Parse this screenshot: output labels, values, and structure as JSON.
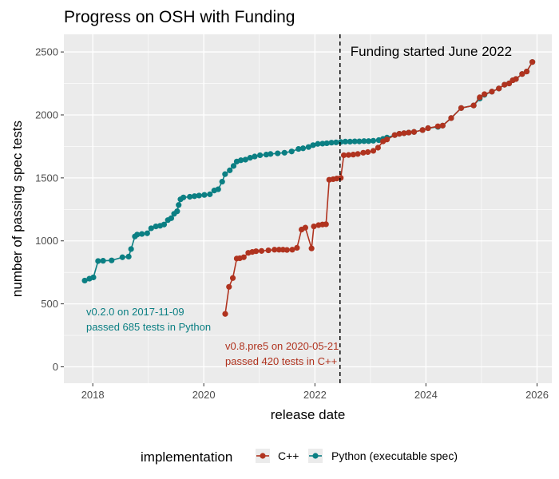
{
  "chart_data": {
    "type": "line",
    "title": "Progress on OSH with Funding",
    "xlabel": "release date",
    "ylabel": "number of passing spec tests",
    "x_type": "date",
    "xlim": [
      "2017-06-25",
      "2026-04-08"
    ],
    "ylim": [
      -130,
      2640
    ],
    "x_ticks": [
      "2018-01-01",
      "2020-01-01",
      "2022-01-01",
      "2024-01-01",
      "2026-01-01"
    ],
    "x_tick_labels": [
      "2018",
      "2020",
      "2022",
      "2024",
      "2026"
    ],
    "y_ticks": [
      0,
      500,
      1000,
      1500,
      2000,
      2500
    ],
    "y_tick_labels": [
      "0",
      "500",
      "1000",
      "1500",
      "2000",
      "2500"
    ],
    "grid": true,
    "legend": {
      "position": "bottom",
      "title": "implementation",
      "entries": [
        "C++",
        "Python (executable spec)"
      ]
    },
    "colors": {
      "cpp": "#b0331f",
      "python": "#0b7f83",
      "panel": "#ebebeb",
      "grid": "#ffffff",
      "vline": "#000000"
    },
    "reference_line": {
      "x": "2022-06-15",
      "label": "Funding started June 2022"
    },
    "annotations": [
      {
        "series": "python",
        "lines": [
          "v0.2.0 on 2017-11-09",
          "passed 685 tests in Python"
        ]
      },
      {
        "series": "cpp",
        "lines": [
          "v0.8.pre5 on 2020-05-21",
          "passed 420 tests in C++"
        ]
      }
    ],
    "series": [
      {
        "key": "cpp",
        "name": "C++",
        "color": "#b0331f",
        "points": [
          [
            "2020-05-21",
            420
          ],
          [
            "2020-06-15",
            635
          ],
          [
            "2020-07-10",
            705
          ],
          [
            "2020-08-05",
            860
          ],
          [
            "2020-08-25",
            862
          ],
          [
            "2020-09-20",
            870
          ],
          [
            "2020-10-20",
            905
          ],
          [
            "2020-11-15",
            912
          ],
          [
            "2020-12-10",
            918
          ],
          [
            "2021-01-15",
            920
          ],
          [
            "2021-03-01",
            925
          ],
          [
            "2021-04-10",
            930
          ],
          [
            "2021-05-10",
            930
          ],
          [
            "2021-06-05",
            930
          ],
          [
            "2021-07-01",
            928
          ],
          [
            "2021-08-05",
            930
          ],
          [
            "2021-09-05",
            945
          ],
          [
            "2021-10-05",
            1090
          ],
          [
            "2021-10-30",
            1105
          ],
          [
            "2021-12-10",
            940
          ],
          [
            "2021-12-25",
            1115
          ],
          [
            "2022-01-25",
            1125
          ],
          [
            "2022-02-20",
            1130
          ],
          [
            "2022-03-15",
            1132
          ],
          [
            "2022-04-05",
            1485
          ],
          [
            "2022-05-01",
            1490
          ],
          [
            "2022-05-25",
            1495
          ],
          [
            "2022-06-20",
            1500
          ],
          [
            "2022-07-10",
            1680
          ],
          [
            "2022-08-10",
            1682
          ],
          [
            "2022-09-10",
            1685
          ],
          [
            "2022-10-10",
            1690
          ],
          [
            "2022-11-15",
            1700
          ],
          [
            "2022-12-15",
            1705
          ],
          [
            "2023-01-20",
            1715
          ],
          [
            "2023-02-20",
            1740
          ],
          [
            "2023-03-25",
            1790
          ],
          [
            "2023-04-20",
            1805
          ],
          [
            "2023-06-10",
            1840
          ],
          [
            "2023-07-10",
            1850
          ],
          [
            "2023-08-10",
            1855
          ],
          [
            "2023-09-10",
            1860
          ],
          [
            "2023-10-15",
            1865
          ],
          [
            "2023-12-10",
            1880
          ],
          [
            "2024-01-15",
            1895
          ],
          [
            "2024-03-20",
            1910
          ],
          [
            "2024-04-20",
            1915
          ],
          [
            "2024-06-15",
            1975
          ],
          [
            "2024-08-20",
            2055
          ],
          [
            "2024-11-10",
            2075
          ],
          [
            "2024-12-20",
            2140
          ],
          [
            "2025-01-20",
            2165
          ],
          [
            "2025-03-10",
            2185
          ],
          [
            "2025-04-25",
            2210
          ],
          [
            "2025-06-01",
            2240
          ],
          [
            "2025-07-01",
            2250
          ],
          [
            "2025-07-25",
            2275
          ],
          [
            "2025-08-15",
            2285
          ],
          [
            "2025-09-25",
            2325
          ],
          [
            "2025-10-25",
            2345
          ],
          [
            "2025-12-01",
            2420
          ]
        ]
      },
      {
        "key": "python",
        "name": "Python (executable spec)",
        "color": "#0b7f83",
        "points": [
          [
            "2017-11-09",
            685
          ],
          [
            "2017-12-10",
            700
          ],
          [
            "2018-01-05",
            710
          ],
          [
            "2018-02-05",
            840
          ],
          [
            "2018-03-10",
            842
          ],
          [
            "2018-05-05",
            845
          ],
          [
            "2018-07-15",
            870
          ],
          [
            "2018-08-25",
            875
          ],
          [
            "2018-09-10",
            935
          ],
          [
            "2018-10-05",
            1035
          ],
          [
            "2018-10-20",
            1050
          ],
          [
            "2018-11-20",
            1055
          ],
          [
            "2018-12-25",
            1060
          ],
          [
            "2019-01-20",
            1100
          ],
          [
            "2019-02-20",
            1115
          ],
          [
            "2019-03-20",
            1120
          ],
          [
            "2019-04-15",
            1130
          ],
          [
            "2019-05-10",
            1165
          ],
          [
            "2019-06-01",
            1180
          ],
          [
            "2019-06-20",
            1215
          ],
          [
            "2019-07-10",
            1235
          ],
          [
            "2019-07-20",
            1285
          ],
          [
            "2019-08-01",
            1330
          ],
          [
            "2019-08-20",
            1345
          ],
          [
            "2019-10-01",
            1350
          ],
          [
            "2019-11-01",
            1355
          ],
          [
            "2019-12-01",
            1360
          ],
          [
            "2020-01-05",
            1365
          ],
          [
            "2020-02-10",
            1370
          ],
          [
            "2020-03-10",
            1400
          ],
          [
            "2020-04-05",
            1410
          ],
          [
            "2020-05-01",
            1470
          ],
          [
            "2020-05-20",
            1530
          ],
          [
            "2020-06-20",
            1560
          ],
          [
            "2020-07-15",
            1595
          ],
          [
            "2020-08-05",
            1630
          ],
          [
            "2020-09-01",
            1640
          ],
          [
            "2020-10-01",
            1645
          ],
          [
            "2020-11-01",
            1660
          ],
          [
            "2020-12-01",
            1670
          ],
          [
            "2021-01-05",
            1680
          ],
          [
            "2021-02-15",
            1685
          ],
          [
            "2021-03-15",
            1690
          ],
          [
            "2021-05-01",
            1695
          ],
          [
            "2021-06-15",
            1700
          ],
          [
            "2021-08-01",
            1710
          ],
          [
            "2021-09-15",
            1730
          ],
          [
            "2021-10-15",
            1735
          ],
          [
            "2021-11-20",
            1745
          ],
          [
            "2021-12-20",
            1760
          ],
          [
            "2022-01-20",
            1770
          ],
          [
            "2022-02-20",
            1772
          ],
          [
            "2022-03-20",
            1775
          ],
          [
            "2022-04-20",
            1780
          ],
          [
            "2022-05-20",
            1782
          ],
          [
            "2022-06-20",
            1785
          ],
          [
            "2022-07-20",
            1788
          ],
          [
            "2022-08-20",
            1788
          ],
          [
            "2022-09-20",
            1790
          ],
          [
            "2022-10-20",
            1790
          ],
          [
            "2022-11-20",
            1792
          ],
          [
            "2022-12-20",
            1792
          ],
          [
            "2023-01-20",
            1795
          ],
          [
            "2023-02-25",
            1800
          ],
          [
            "2023-03-25",
            1810
          ],
          [
            "2023-04-20",
            1820
          ],
          [
            "2023-06-10",
            1840
          ],
          [
            "2023-07-10",
            1850
          ],
          [
            "2023-08-10",
            1855
          ],
          [
            "2023-09-10",
            1860
          ],
          [
            "2023-10-15",
            1865
          ],
          [
            "2023-12-10",
            1880
          ],
          [
            "2024-01-15",
            1895
          ],
          [
            "2024-03-20",
            1905
          ],
          [
            "2024-04-20",
            1915
          ],
          [
            "2024-06-15",
            1975
          ],
          [
            "2024-08-20",
            2055
          ],
          [
            "2024-11-10",
            2075
          ],
          [
            "2024-12-20",
            2130
          ],
          [
            "2025-01-20",
            2160
          ],
          [
            "2025-03-10",
            2185
          ],
          [
            "2025-04-25",
            2210
          ],
          [
            "2025-06-01",
            2240
          ],
          [
            "2025-07-01",
            2250
          ],
          [
            "2025-07-25",
            2275
          ],
          [
            "2025-08-15",
            2285
          ],
          [
            "2025-09-25",
            2325
          ],
          [
            "2025-10-25",
            2345
          ],
          [
            "2025-12-01",
            2420
          ]
        ]
      }
    ]
  }
}
